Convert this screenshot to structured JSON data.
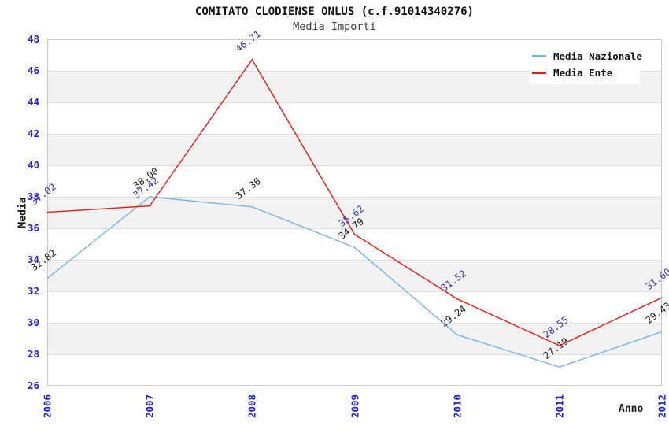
{
  "chart_data": {
    "type": "line",
    "title": "COMITATO CLODIENSE ONLUS (c.f.91014340276)",
    "subtitle": "Media Importi",
    "xlabel": "Anno",
    "ylabel": "Media",
    "categories": [
      "2006",
      "2007",
      "2008",
      "2009",
      "2010",
      "2011",
      "2012"
    ],
    "series": [
      {
        "name": "Media Nazionale",
        "color": "#7ab2e0",
        "label_color": "#1a1a1a",
        "values": [
          32.82,
          38.0,
          37.36,
          34.79,
          29.24,
          27.19,
          29.43
        ],
        "point_labels": [
          "32.82",
          "38.00",
          "37.36",
          "34.79",
          "29.24",
          "27.19",
          "29.43"
        ]
      },
      {
        "name": "Media Ente",
        "color": "#e61717",
        "label_color": "#3333aa",
        "values": [
          37.02,
          37.42,
          46.71,
          35.62,
          31.52,
          28.55,
          31.6
        ],
        "point_labels": [
          "37.02",
          "37.42",
          "46.71",
          "35.62",
          "31.52",
          "28.55",
          "31.60"
        ]
      }
    ],
    "ylim": [
      26,
      48
    ],
    "ytick_step": 2,
    "yticks": [
      "26",
      "28",
      "30",
      "32",
      "34",
      "36",
      "38",
      "40",
      "42",
      "44",
      "46",
      "48"
    ],
    "grid": "horizontal",
    "band_colors": [
      "#ffffff",
      "#f2f2f2"
    ],
    "gridline_color": "#dcdcdc",
    "tick_label_color": "#1e1ecd",
    "legend_position": "top-right"
  }
}
